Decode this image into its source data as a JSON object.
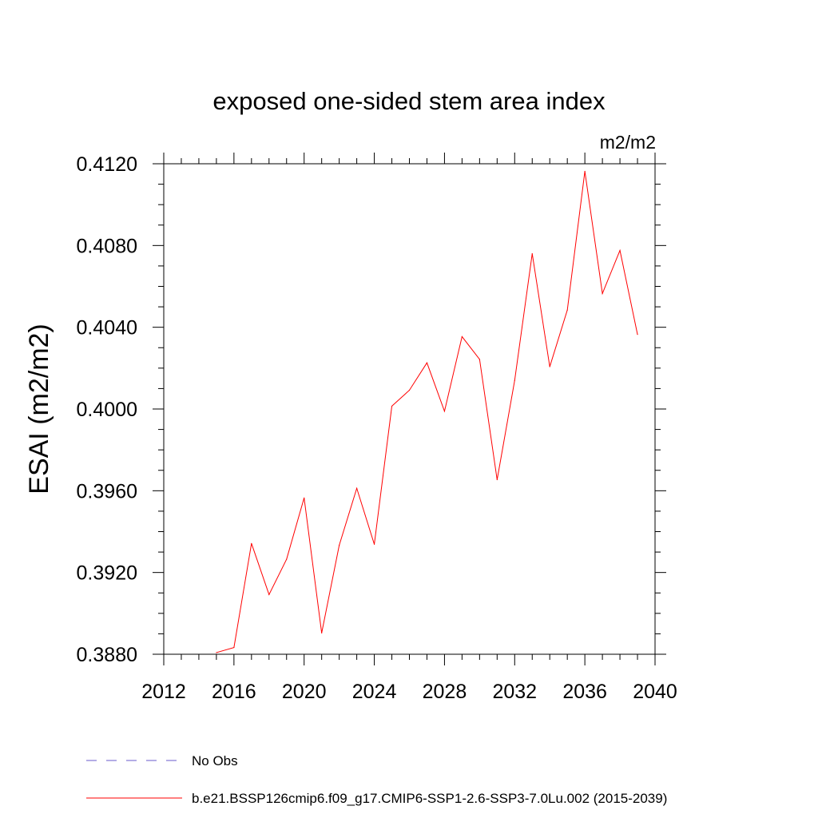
{
  "chart_data": {
    "type": "line",
    "title": "exposed one-sided stem area index",
    "units": "m2/m2",
    "xlabel": "",
    "ylabel": "ESAI  (m2/m2)",
    "xlim": [
      2012,
      2040
    ],
    "ylim": [
      0.388,
      0.412
    ],
    "x_ticks": [
      2012,
      2016,
      2020,
      2024,
      2028,
      2032,
      2036,
      2040
    ],
    "x_tick_labels": [
      "2012",
      "2016",
      "2020",
      "2024",
      "2028",
      "2032",
      "2036",
      "2040"
    ],
    "y_ticks": [
      0.388,
      0.392,
      0.396,
      0.4,
      0.404,
      0.408,
      0.412
    ],
    "y_tick_labels": [
      "0.3880",
      "0.3920",
      "0.3960",
      "0.4000",
      "0.4040",
      "0.4080",
      "0.4120"
    ],
    "x_minor_step": 1,
    "y_minor_step": 0.001,
    "grid": false,
    "legend_position": "bottom",
    "series": [
      {
        "name": "No Obs",
        "color": "#6a5acd",
        "dash": "dashed",
        "x": [],
        "values": []
      },
      {
        "name": "b.e21.BSSP126cmip6.f09_g17.CMIP6-SSP1-2.6-SSP3-7.0Lu.002 (2015-2039)",
        "color": "#ff0000",
        "dash": "solid",
        "x": [
          2015,
          2016,
          2017,
          2018,
          2019,
          2020,
          2021,
          2022,
          2023,
          2024,
          2025,
          2026,
          2027,
          2028,
          2029,
          2030,
          2031,
          2032,
          2033,
          2034,
          2035,
          2036,
          2037,
          2038,
          2039
        ],
        "values": [
          0.38808,
          0.38833,
          0.39342,
          0.39092,
          0.39265,
          0.39565,
          0.38904,
          0.39333,
          0.39612,
          0.39338,
          0.40014,
          0.40092,
          0.40226,
          0.39989,
          0.40354,
          0.40243,
          0.39654,
          0.4014,
          0.4076,
          0.40207,
          0.40484,
          0.41163,
          0.40565,
          0.40776,
          0.40365
        ]
      }
    ]
  }
}
